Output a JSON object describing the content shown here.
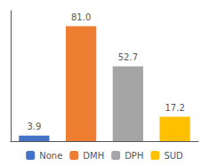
{
  "chart_data": {
    "type": "bar",
    "categories": [
      "None",
      "DMH",
      "DPH",
      "SUD"
    ],
    "values": [
      3.9,
      81.0,
      52.7,
      17.2
    ],
    "value_labels": [
      "3.9",
      "81.0",
      "52.7",
      "17.2"
    ],
    "colors": [
      "#4472c4",
      "#ed7d31",
      "#a5a5a5",
      "#ffc000"
    ],
    "ylim": [
      0,
      92
    ],
    "data_labels": true,
    "tick_labels": false,
    "grid": false,
    "legend": "bottom"
  }
}
